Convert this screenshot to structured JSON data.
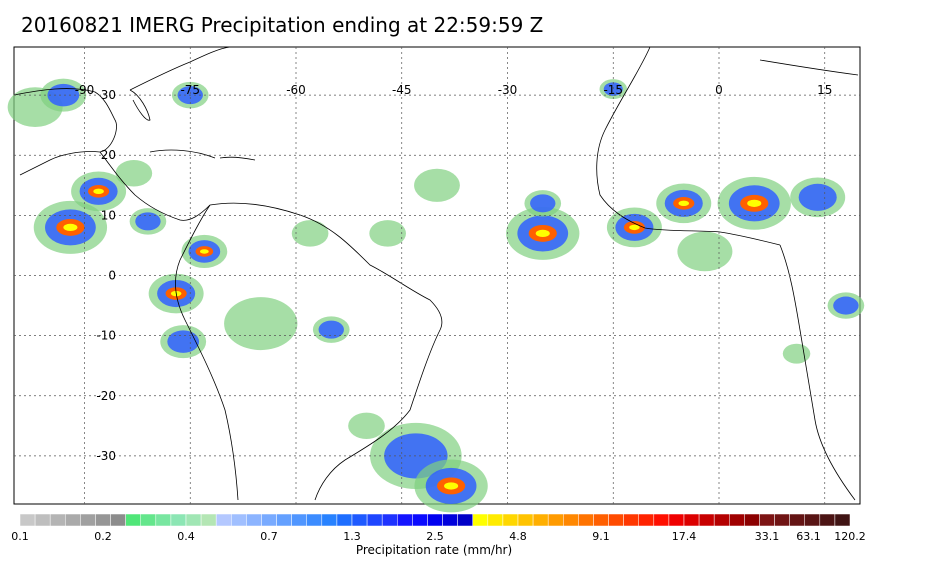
{
  "title": "20160821 IMERG Precipitation ending at 22:59:59 Z",
  "map": {
    "extent": {
      "lon_min": -100,
      "lon_max": 20,
      "lat_min": -38,
      "lat_max": 38
    },
    "grid": true,
    "lon_ticks": [
      {
        "value": -90,
        "label": "-90"
      },
      {
        "value": -75,
        "label": "-75"
      },
      {
        "value": -60,
        "label": "-60"
      },
      {
        "value": -45,
        "label": "-45"
      },
      {
        "value": -30,
        "label": "-30"
      },
      {
        "value": -15,
        "label": "-15"
      },
      {
        "value": 0,
        "label": "0"
      },
      {
        "value": 15,
        "label": "15"
      }
    ],
    "lat_ticks": [
      {
        "value": 30,
        "label": "30"
      },
      {
        "value": 20,
        "label": "20"
      },
      {
        "value": 10,
        "label": "10"
      },
      {
        "value": 0,
        "label": "0"
      },
      {
        "value": -10,
        "label": "-10"
      },
      {
        "value": -20,
        "label": "-20"
      },
      {
        "value": -30,
        "label": "-30"
      }
    ],
    "precip_areas": [
      {
        "name": "gulf-of-mexico-west",
        "lon": -97,
        "lat": 28,
        "r": 3,
        "level": "light"
      },
      {
        "name": "texas-coast",
        "lon": -93,
        "lat": 30,
        "r": 2.5,
        "level": "moderate"
      },
      {
        "name": "central-america",
        "lon": -88,
        "lat": 14,
        "r": 3,
        "level": "heavy"
      },
      {
        "name": "east-pacific",
        "lon": -92,
        "lat": 8,
        "r": 4,
        "level": "heavy"
      },
      {
        "name": "panama",
        "lon": -81,
        "lat": 9,
        "r": 2,
        "level": "moderate"
      },
      {
        "name": "western-caribbean",
        "lon": -83,
        "lat": 17,
        "r": 2,
        "level": "light"
      },
      {
        "name": "bahamas",
        "lon": -75,
        "lat": 30,
        "r": 2,
        "level": "moderate"
      },
      {
        "name": "colombia-north",
        "lon": -73,
        "lat": 4,
        "r": 2.5,
        "level": "heavy"
      },
      {
        "name": "amazon-west",
        "lon": -77,
        "lat": -3,
        "r": 3,
        "level": "heavy"
      },
      {
        "name": "peru",
        "lon": -76,
        "lat": -11,
        "r": 2.5,
        "level": "moderate"
      },
      {
        "name": "amazon-central",
        "lon": -65,
        "lat": -8,
        "r": 4,
        "level": "light"
      },
      {
        "name": "amazon-east",
        "lon": -55,
        "lat": -9,
        "r": 2,
        "level": "moderate"
      },
      {
        "name": "guiana",
        "lon": -58,
        "lat": 7,
        "r": 2,
        "level": "light"
      },
      {
        "name": "atlantic-central",
        "lon": -40,
        "lat": 15,
        "r": 2.5,
        "level": "light"
      },
      {
        "name": "atlantic-itcz-west",
        "lon": -47,
        "lat": 7,
        "r": 2,
        "level": "light"
      },
      {
        "name": "atlantic-itcz-east",
        "lon": -25,
        "lat": 7,
        "r": 4,
        "level": "heavy"
      },
      {
        "name": "cape-verde",
        "lon": -25,
        "lat": 12,
        "r": 2,
        "level": "moderate"
      },
      {
        "name": "guinea-coast",
        "lon": -12,
        "lat": 8,
        "r": 3,
        "level": "heavy"
      },
      {
        "name": "sahel-west",
        "lon": -5,
        "lat": 12,
        "r": 3,
        "level": "heavy"
      },
      {
        "name": "sahel-central",
        "lon": 5,
        "lat": 12,
        "r": 4,
        "level": "heavy"
      },
      {
        "name": "sahel-east",
        "lon": 14,
        "lat": 13,
        "r": 3,
        "level": "moderate"
      },
      {
        "name": "gulf-of-guinea",
        "lon": -2,
        "lat": 4,
        "r": 3,
        "level": "light"
      },
      {
        "name": "iberia",
        "lon": -15,
        "lat": 31,
        "r": 1.5,
        "level": "moderate"
      },
      {
        "name": "congo",
        "lon": 18,
        "lat": -5,
        "r": 2,
        "level": "moderate"
      },
      {
        "name": "angola",
        "lon": 11,
        "lat": -13,
        "r": 1.5,
        "level": "light"
      },
      {
        "name": "south-atlantic-front",
        "lon": -43,
        "lat": -30,
        "r": 5,
        "level": "moderate"
      },
      {
        "name": "south-atlantic-front-2",
        "lon": -38,
        "lat": -35,
        "r": 4,
        "level": "heavy"
      },
      {
        "name": "uruguay",
        "lon": -50,
        "lat": -25,
        "r": 2,
        "level": "light"
      }
    ],
    "precip_colors": {
      "light": "#80d080",
      "moderate": "#3060ff",
      "heavy": "#ff6000",
      "core": "#ffff00"
    }
  },
  "colorbar": {
    "title": "Precipitation rate (mm/hr)",
    "colors": [
      "#c8c8c8",
      "#bebebe",
      "#b4b4b4",
      "#aaaaaa",
      "#a0a0a0",
      "#969696",
      "#8c8c8c",
      "#50e678",
      "#64e68c",
      "#78e6a0",
      "#8ce6b4",
      "#a0e6b4",
      "#b4e6b4",
      "#b4c8ff",
      "#a0bfff",
      "#8cb4ff",
      "#78aaff",
      "#64a0ff",
      "#5096ff",
      "#3c8cff",
      "#2882ff",
      "#1e6eff",
      "#1e5aff",
      "#1e46ff",
      "#1e32ff",
      "#1414ff",
      "#0a0aff",
      "#0000f0",
      "#0000dc",
      "#0000c8",
      "#ffff00",
      "#ffeb00",
      "#ffd700",
      "#ffc300",
      "#ffaf00",
      "#ff9b00",
      "#ff8700",
      "#ff7300",
      "#ff5f00",
      "#ff4b00",
      "#ff3700",
      "#ff2300",
      "#ff0f00",
      "#f00000",
      "#dc0000",
      "#c80000",
      "#b40000",
      "#a00000",
      "#8c0000",
      "#7d1414",
      "#701414",
      "#641414",
      "#581414",
      "#4c1414",
      "#401414"
    ],
    "labels": [
      {
        "value": "0.1",
        "pos": 0
      },
      {
        "value": "0.2",
        "pos": 0.1
      },
      {
        "value": "0.4",
        "pos": 0.2
      },
      {
        "value": "0.7",
        "pos": 0.3
      },
      {
        "value": "1.3",
        "pos": 0.4
      },
      {
        "value": "2.5",
        "pos": 0.5
      },
      {
        "value": "4.8",
        "pos": 0.6
      },
      {
        "value": "9.1",
        "pos": 0.7
      },
      {
        "value": "17.4",
        "pos": 0.8
      },
      {
        "value": "33.1",
        "pos": 0.9
      },
      {
        "value": "63.1",
        "pos": 0.95
      },
      {
        "value": "120.2",
        "pos": 1
      }
    ]
  }
}
